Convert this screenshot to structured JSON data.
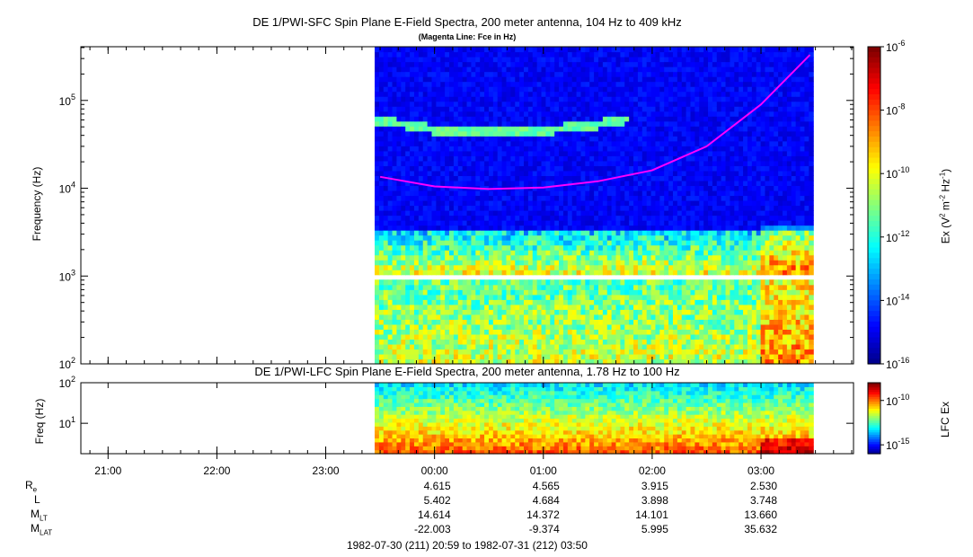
{
  "chart_data": [
    {
      "type": "heatmap",
      "title": "DE 1/PWI-SFC  Spin Plane E-Field Spectra, 200 meter antenna, 104 Hz to 409 kHz",
      "subtitle": "(Magenta Line: Fce in Hz)",
      "ylabel": "Frequency (Hz)",
      "yscale": "log",
      "ylim": [
        100,
        409000
      ],
      "yticks": [
        {
          "v": 100,
          "m": "10",
          "e": "2"
        },
        {
          "v": 1000,
          "m": "10",
          "e": "3"
        },
        {
          "v": 10000,
          "m": "10",
          "e": "4"
        },
        {
          "v": 100000,
          "m": "10",
          "e": "5"
        }
      ],
      "data_start_hour": 23.45,
      "data_end_hour": 27.48,
      "gap_band_hz": [
        880,
        1020
      ],
      "fce_line": {
        "name": "Fce",
        "color": "#ff00ff",
        "points": [
          [
            23.5,
            13500
          ],
          [
            24.0,
            10500
          ],
          [
            24.5,
            9800
          ],
          [
            25.0,
            10200
          ],
          [
            25.5,
            12000
          ],
          [
            26.0,
            16000
          ],
          [
            26.5,
            30000
          ],
          [
            27.0,
            90000
          ],
          [
            27.45,
            330000
          ]
        ]
      },
      "colorbar": {
        "label_parts": [
          "Ex (V",
          "2",
          " m",
          "-2",
          " Hz",
          "-1",
          ")"
        ],
        "scale": "log",
        "range": [
          1e-16,
          1e-06
        ],
        "ticks": [
          {
            "v": -6,
            "m": "10",
            "e": "-6"
          },
          {
            "v": -8,
            "m": "10",
            "e": "-8"
          },
          {
            "v": -10,
            "m": "10",
            "e": "-10"
          },
          {
            "v": -12,
            "m": "10",
            "e": "-12"
          },
          {
            "v": -14,
            "m": "10",
            "e": "-14"
          },
          {
            "v": -16,
            "m": "10",
            "e": "-16"
          }
        ]
      }
    },
    {
      "type": "heatmap",
      "title": "DE 1/PWI-LFC  Spin Plane E-Field Spectra, 200 meter antenna, 1.78 Hz to 100 Hz",
      "ylabel": "Freq (Hz)",
      "yscale": "log",
      "ylim": [
        1.78,
        100
      ],
      "yticks": [
        {
          "v": 10,
          "m": "10",
          "e": "1"
        },
        {
          "v": 100,
          "m": "10",
          "e": "2"
        }
      ],
      "data_start_hour": 23.45,
      "data_end_hour": 27.48,
      "colorbar": {
        "label": "LFC Ex",
        "scale": "log",
        "range": [
          1e-16,
          1e-08
        ],
        "ticks": [
          {
            "v": -10,
            "m": "10",
            "e": "-10"
          },
          {
            "v": -15,
            "m": "10",
            "e": "-15"
          }
        ]
      }
    }
  ],
  "time_axis": {
    "range_hours": [
      20.75,
      27.85
    ],
    "ticks": [
      {
        "h": 21,
        "label": "21:00"
      },
      {
        "h": 22,
        "label": "22:00"
      },
      {
        "h": 23,
        "label": "23:00"
      },
      {
        "h": 24,
        "label": "00:00"
      },
      {
        "h": 25,
        "label": "01:00"
      },
      {
        "h": 26,
        "label": "02:00"
      },
      {
        "h": 27,
        "label": "03:00"
      }
    ]
  },
  "ephemeris": [
    {
      "name": "R",
      "sub": "e",
      "values": [
        "4.615",
        "4.565",
        "3.915",
        "2.530"
      ]
    },
    {
      "name": "L",
      "sub": "",
      "values": [
        "5.402",
        "4.684",
        "3.898",
        "3.748"
      ]
    },
    {
      "name": "M",
      "sub": "LT",
      "values": [
        "14.614",
        "14.372",
        "14.101",
        "13.660"
      ]
    },
    {
      "name": "M",
      "sub": "LAT",
      "values": [
        "-22.003",
        "-9.374",
        "5.995",
        "35.632"
      ]
    }
  ],
  "ephemeris_hours": [
    24,
    25,
    26,
    27
  ],
  "footer": "1982-07-30 (211) 20:59 to 1982-07-31 (212) 03:50"
}
